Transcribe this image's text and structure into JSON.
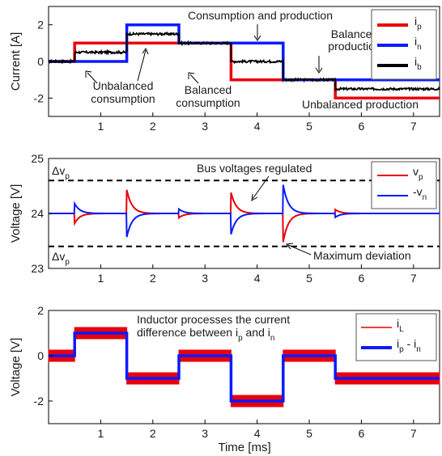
{
  "chart_data": [
    {
      "type": "line",
      "ylabel": "Current [A]",
      "xlim": [
        0,
        7.5
      ],
      "ylim": [
        -3,
        3
      ],
      "xticks": [
        1,
        2,
        3,
        4,
        5,
        6,
        7
      ],
      "yticks": [
        -2,
        0,
        2
      ],
      "xtick_labels": [
        "1",
        "2",
        "3",
        "4",
        "5",
        "6",
        "7"
      ],
      "ytick_labels": [
        "-2",
        "0",
        "2"
      ],
      "legend": [
        "i_p",
        "i_n",
        "i_b"
      ],
      "legend_position": "top-right",
      "series": [
        {
          "name": "i_p",
          "color": "#e8000b",
          "x": [
            0,
            0.5,
            0.5,
            1.5,
            1.5,
            2.5,
            2.5,
            3.5,
            3.5,
            4.5,
            4.5,
            5.5,
            5.5,
            7.5
          ],
          "y": [
            0,
            0,
            1,
            1,
            1,
            1,
            1,
            1,
            -1,
            -1,
            -1,
            -1,
            -2,
            -2
          ]
        },
        {
          "name": "i_n",
          "color": "#0a1aff",
          "x": [
            0,
            0.5,
            0.5,
            1.5,
            1.5,
            2.5,
            2.5,
            3.5,
            3.5,
            4.5,
            4.5,
            5.5,
            5.5,
            7.5
          ],
          "y": [
            0,
            0,
            0,
            0,
            2,
            2,
            1,
            1,
            1,
            1,
            -1,
            -1,
            -1,
            -1
          ]
        },
        {
          "name": "i_b",
          "color": "#000000",
          "x": [
            0,
            0.5,
            0.5,
            1.5,
            1.5,
            2.5,
            2.5,
            3.5,
            3.5,
            4.5,
            4.5,
            5.5,
            5.5,
            7.5
          ],
          "y": [
            0,
            0,
            0.5,
            0.5,
            1.5,
            1.5,
            1,
            1,
            0,
            0,
            -1,
            -1,
            -1.5,
            -1.5
          ]
        }
      ],
      "annotations": [
        "Consumption and production",
        "Balanced production",
        "Unbalanced consumption",
        "Balanced consumption",
        "Unbalanced production"
      ]
    },
    {
      "type": "line",
      "ylabel": "Voltage [V]",
      "xlim": [
        0,
        7.5
      ],
      "ylim": [
        23,
        25
      ],
      "xticks": [
        1,
        2,
        3,
        4,
        5,
        6,
        7
      ],
      "yticks": [
        23,
        24,
        25
      ],
      "xtick_labels": [
        "1",
        "2",
        "3",
        "4",
        "5",
        "6",
        "7"
      ],
      "ytick_labels": [
        "23",
        "24",
        "25"
      ],
      "legend": [
        "v_p",
        "-v_n"
      ],
      "legend_position": "top-right",
      "series": [
        {
          "name": "v_p",
          "color": "#e8000b",
          "baseline": 24,
          "events_x": [
            0.5,
            1.5,
            2.5,
            3.5,
            4.5,
            5.5
          ],
          "deviation": [
            -0.18,
            0.43,
            -0.08,
            0.38,
            -0.52,
            0.07
          ]
        },
        {
          "name": "-v_n",
          "color": "#0a1aff",
          "baseline": 24,
          "events_x": [
            0.5,
            1.5,
            2.5,
            3.5,
            4.5,
            5.5
          ],
          "deviation": [
            0.18,
            -0.43,
            0.08,
            -0.38,
            0.52,
            -0.07
          ]
        }
      ],
      "reference_lines": [
        {
          "y": 24.6,
          "label": "Δv_p"
        },
        {
          "y": 23.4,
          "label": "Δv_p"
        }
      ],
      "annotations": [
        "Bus voltages regulated",
        "Maximum deviation"
      ]
    },
    {
      "type": "line",
      "ylabel": "Voltage [V]",
      "xlabel": "Time [ms]",
      "xlim": [
        0,
        7.5
      ],
      "ylim": [
        -3,
        2
      ],
      "xticks": [
        1,
        2,
        3,
        4,
        5,
        6,
        7
      ],
      "yticks": [
        -2,
        0,
        2
      ],
      "xtick_labels": [
        "1",
        "2",
        "3",
        "4",
        "5",
        "6",
        "7"
      ],
      "ytick_labels": [
        "-2",
        "0",
        "2"
      ],
      "legend": [
        "i_L",
        "i_p - i_n"
      ],
      "legend_position": "top-right",
      "series": [
        {
          "name": "i_L",
          "color": "#e8000b",
          "ripple": 0.25,
          "x": [
            0,
            0.5,
            0.5,
            1.5,
            1.5,
            2.5,
            2.5,
            3.5,
            3.5,
            4.5,
            4.5,
            5.5,
            5.5,
            7.5
          ],
          "y": [
            0,
            0,
            1,
            1,
            -1,
            -1,
            0,
            0,
            -2,
            -2,
            0,
            0,
            -1,
            -1
          ]
        },
        {
          "name": "i_p - i_n",
          "color": "#0a1aff",
          "x": [
            0,
            0.5,
            0.5,
            1.5,
            1.5,
            2.5,
            2.5,
            3.5,
            3.5,
            4.5,
            4.5,
            5.5,
            5.5,
            7.5
          ],
          "y": [
            0,
            0,
            1,
            1,
            -1,
            -1,
            0,
            0,
            -2,
            -2,
            0,
            0,
            -1,
            -1
          ]
        }
      ],
      "annotations": [
        "Inductor processes the current",
        "difference between i_p and i_n"
      ]
    }
  ]
}
